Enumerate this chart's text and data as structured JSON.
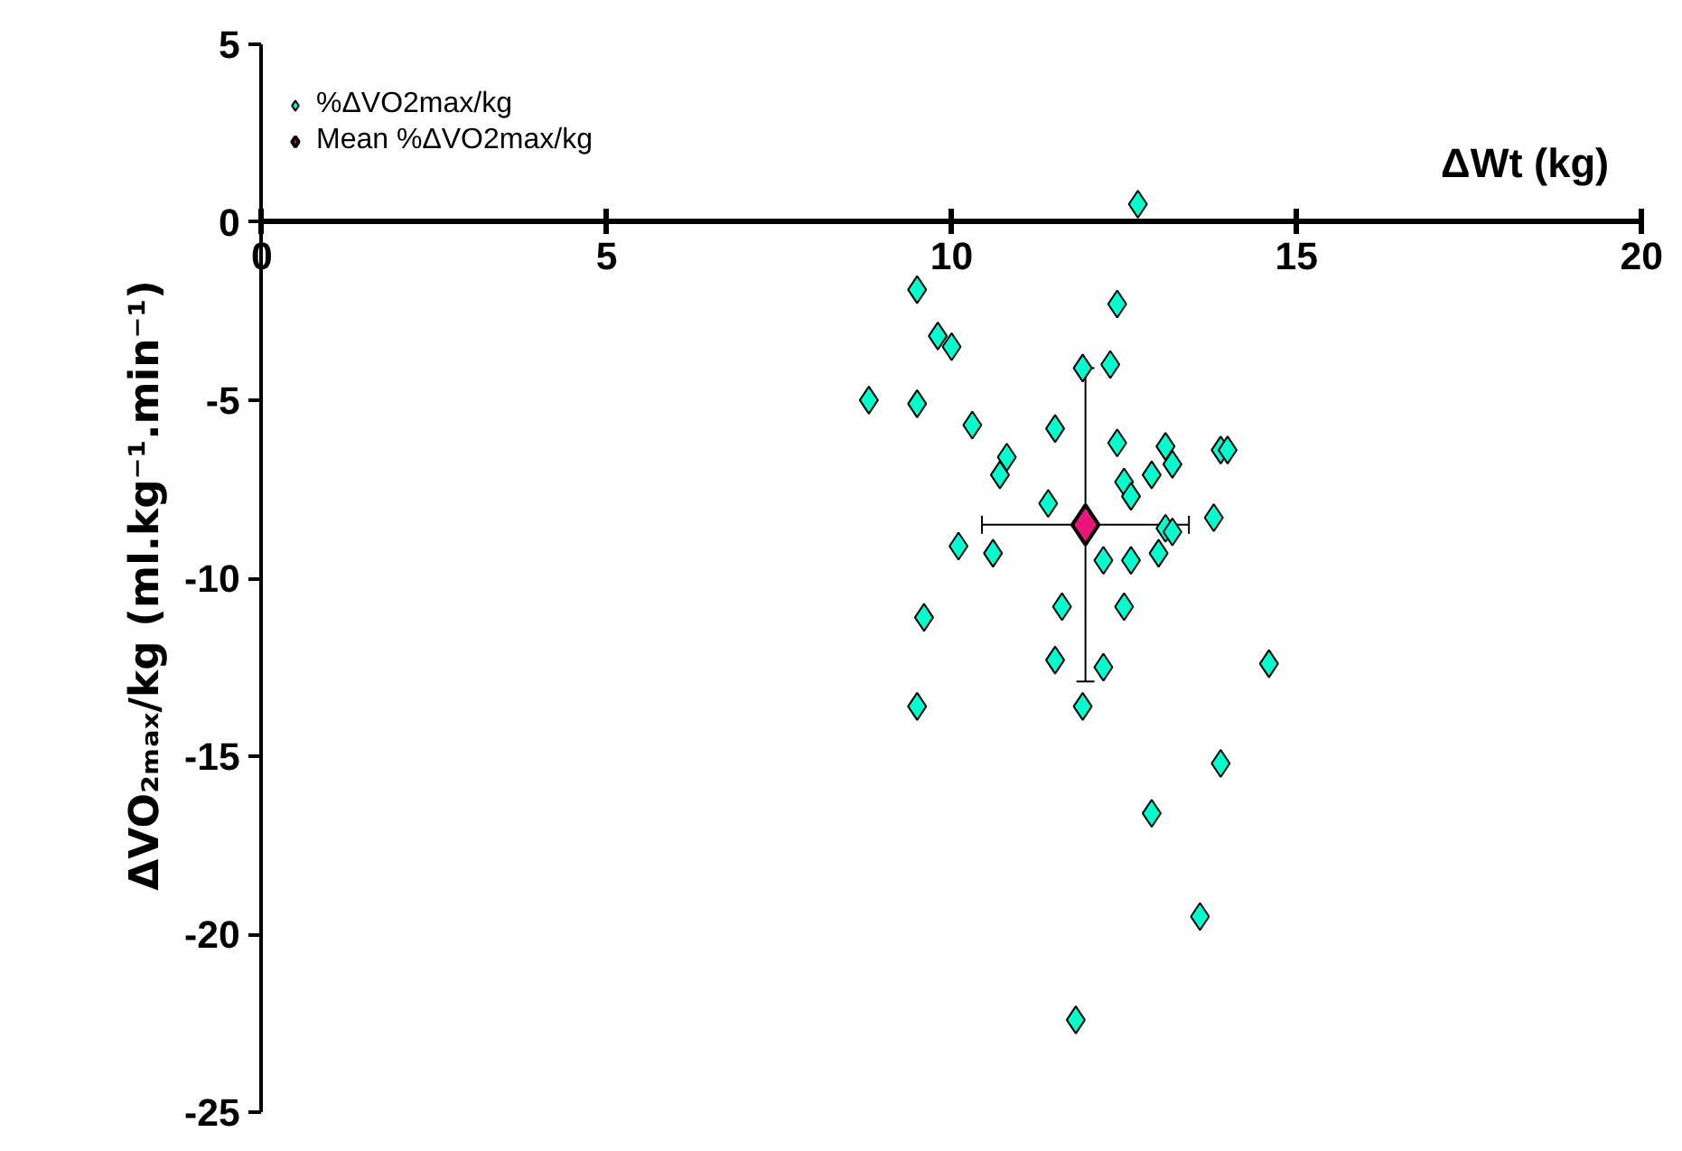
{
  "chart_data": {
    "type": "scatter",
    "xlabel": "ΔWt (kg)",
    "ylabel": "ΔVO₂ₘₐₓ/kg  (ml.kg⁻¹.min⁻¹)",
    "xlim": [
      0,
      20
    ],
    "xticks": [
      0,
      5,
      10,
      15,
      20
    ],
    "ylim": [
      -25,
      5
    ],
    "yticks": [
      -25,
      -20,
      -15,
      -10,
      -5,
      0,
      5
    ],
    "grid": false,
    "legend": "top left",
    "marker": "diamond",
    "series": [
      {
        "name": "%ΔVO2max/kg",
        "color": "#00ffcc",
        "x": [
          12.7,
          9.5,
          12.4,
          9.8,
          10.0,
          8.8,
          9.5,
          11.9,
          12.3,
          10.3,
          11.5,
          10.8,
          10.7,
          12.4,
          13.1,
          13.9,
          14.0,
          11.4,
          12.5,
          12.6,
          12.9,
          13.2,
          10.1,
          10.6,
          12.2,
          12.6,
          13.0,
          13.1,
          13.2,
          13.8,
          9.6,
          11.6,
          12.5,
          11.5,
          12.2,
          9.5,
          11.9,
          14.6,
          13.9,
          12.9,
          13.6,
          11.8
        ],
        "values": [
          0.5,
          -1.9,
          -2.3,
          -3.2,
          -3.5,
          -5.0,
          -5.1,
          -4.1,
          -4.0,
          -5.7,
          -5.8,
          -6.6,
          -7.1,
          -6.2,
          -6.3,
          -6.4,
          -6.4,
          -7.9,
          -7.3,
          -7.7,
          -7.1,
          -6.8,
          -9.1,
          -9.3,
          -9.5,
          -9.5,
          -9.3,
          -8.6,
          -8.7,
          -8.3,
          -11.1,
          -10.8,
          -10.8,
          -12.3,
          -12.5,
          -13.6,
          -13.6,
          -12.4,
          -15.2,
          -16.6,
          -19.5,
          -22.4
        ]
      },
      {
        "name": "Mean %ΔVO2max/kg",
        "color": "#e8157a",
        "x": [
          11.94
        ],
        "values": [
          -8.5
        ],
        "errors": [
          4.4
        ],
        "xerrors": [
          1.5
        ]
      }
    ]
  }
}
